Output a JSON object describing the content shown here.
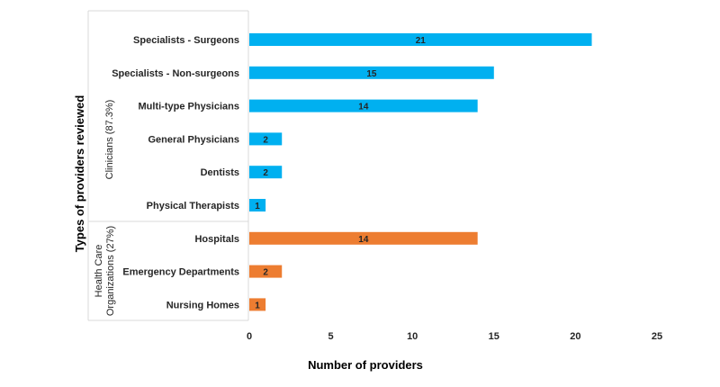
{
  "chart_data": {
    "type": "bar",
    "orientation": "horizontal",
    "categories": [
      "Specialists - Surgeons",
      "Specialists - Non-surgeons",
      "Multi-type Physicians",
      "General Physicians",
      "Dentists",
      "Physical Therapists",
      "Hospitals",
      "Emergency Departments",
      "Nursing Homes"
    ],
    "values": [
      21,
      15,
      14,
      2,
      2,
      1,
      14,
      2,
      1
    ],
    "groups": [
      {
        "label": "Clinicians (87.3%)",
        "categories": [
          "Specialists - Surgeons",
          "Specialists - Non-surgeons",
          "Multi-type Physicians",
          "General Physicians",
          "Dentists",
          "Physical Therapists"
        ],
        "color": "#00B0F0"
      },
      {
        "label_line1": "Health Care",
        "label_line2": "Organizations (27%)",
        "categories": [
          "Hospitals",
          "Emergency Departments",
          "Nursing Homes"
        ],
        "color": "#ED7D31"
      }
    ],
    "xlabel": "Number of providers",
    "ylabel": "Types of providers reviewed",
    "xlim": [
      0,
      25
    ],
    "xticks": [
      "0",
      "5",
      "10",
      "15",
      "20",
      "25"
    ],
    "grid": false,
    "data_labels": true
  }
}
